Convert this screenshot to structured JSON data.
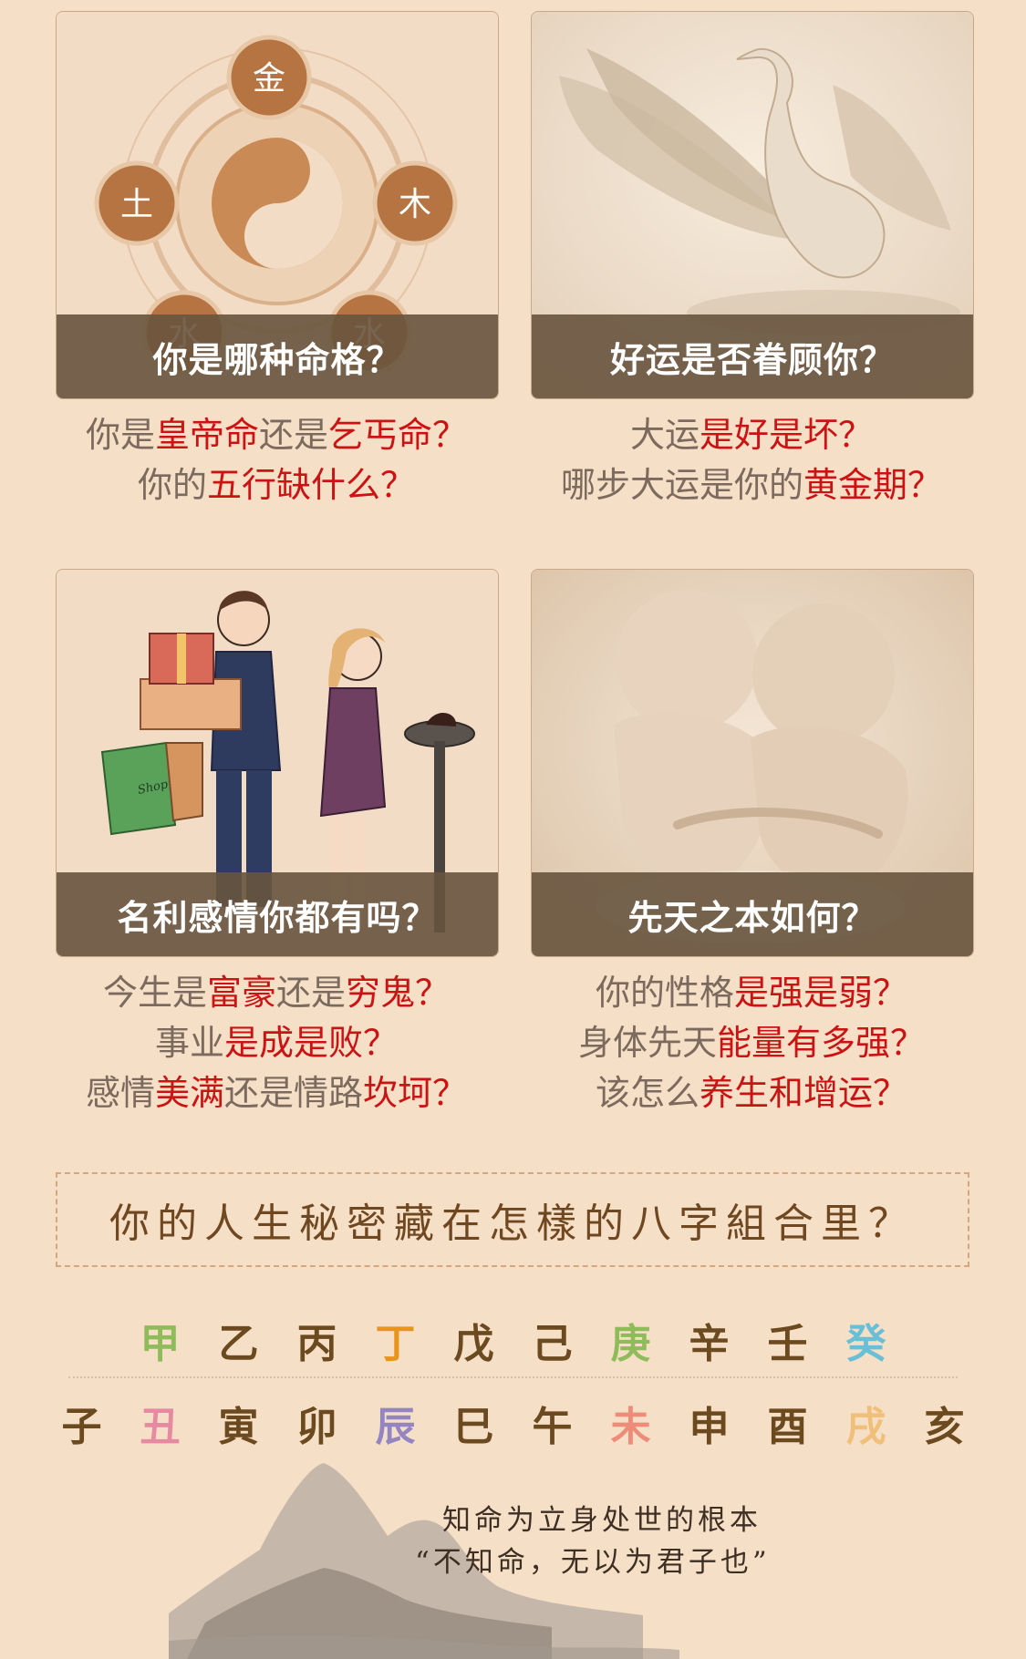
{
  "cards": [
    {
      "title": "你是哪种命格？",
      "desc_lines": [
        [
          {
            "t": "你是",
            "h": false
          },
          {
            "t": "皇帝命",
            "h": true
          },
          {
            "t": "还是",
            "h": false
          },
          {
            "t": "乞丐命？",
            "h": true
          }
        ],
        [
          {
            "t": "你的",
            "h": false
          },
          {
            "t": "五行缺什么？",
            "h": true
          }
        ]
      ],
      "badges": [
        "金",
        "土",
        "木",
        "水",
        "水"
      ]
    },
    {
      "title": "好运是否眷顾你？",
      "desc_lines": [
        [
          {
            "t": "大运",
            "h": false
          },
          {
            "t": "是好是坏？",
            "h": true
          }
        ],
        [
          {
            "t": "哪步大运是你的",
            "h": false
          },
          {
            "t": "黄金期？",
            "h": true
          }
        ]
      ]
    },
    {
      "title": "名利感情你都有吗？",
      "desc_lines": [
        [
          {
            "t": "今生是",
            "h": false
          },
          {
            "t": "富豪",
            "h": true
          },
          {
            "t": "还是",
            "h": false
          },
          {
            "t": "穷鬼？",
            "h": true
          }
        ],
        [
          {
            "t": "事业",
            "h": false
          },
          {
            "t": "是成是败？",
            "h": true
          }
        ],
        [
          {
            "t": "感情",
            "h": false
          },
          {
            "t": "美满",
            "h": true
          },
          {
            "t": "还是情路",
            "h": false
          },
          {
            "t": "坎坷？",
            "h": true
          }
        ]
      ],
      "bag_text": "Shopping"
    },
    {
      "title": "先天之本如何？",
      "desc_lines": [
        [
          {
            "t": "你的性格",
            "h": false
          },
          {
            "t": "是强是弱？",
            "h": true
          }
        ],
        [
          {
            "t": "身体先天",
            "h": false
          },
          {
            "t": "能量有多强？",
            "h": true
          }
        ],
        [
          {
            "t": "该怎么",
            "h": false
          },
          {
            "t": "养生和增运？",
            "h": true
          }
        ]
      ]
    }
  ],
  "banner_text": "你的人生秘密藏在怎樣的八字組合里？",
  "heavenly_stems": [
    {
      "c": "甲",
      "color": "#8fbb5a"
    },
    {
      "c": "乙",
      "color": "#6b4a1f"
    },
    {
      "c": "丙",
      "color": "#6b4a1f"
    },
    {
      "c": "丁",
      "color": "#e8951e"
    },
    {
      "c": "戊",
      "color": "#6b4a1f"
    },
    {
      "c": "己",
      "color": "#6b4a1f"
    },
    {
      "c": "庚",
      "color": "#8fbb5a"
    },
    {
      "c": "辛",
      "color": "#6b4a1f"
    },
    {
      "c": "壬",
      "color": "#6b4a1f"
    },
    {
      "c": "癸",
      "color": "#69c0d6"
    }
  ],
  "earthly_branches": [
    {
      "c": "子",
      "color": "#6b4a1f"
    },
    {
      "c": "丑",
      "color": "#e58aa0"
    },
    {
      "c": "寅",
      "color": "#6b4a1f"
    },
    {
      "c": "卯",
      "color": "#6b4a1f"
    },
    {
      "c": "辰",
      "color": "#9384c2"
    },
    {
      "c": "巳",
      "color": "#6b4a1f"
    },
    {
      "c": "午",
      "color": "#6b4a1f"
    },
    {
      "c": "未",
      "color": "#ee8c7a"
    },
    {
      "c": "申",
      "color": "#6b4a1f"
    },
    {
      "c": "酉",
      "color": "#6b4a1f"
    },
    {
      "c": "戌",
      "color": "#f0bf7a"
    },
    {
      "c": "亥",
      "color": "#6b4a1f"
    }
  ],
  "quote": {
    "line1": "知命为立身处世的根本",
    "line2": "“不知命，无以为君子也”"
  }
}
